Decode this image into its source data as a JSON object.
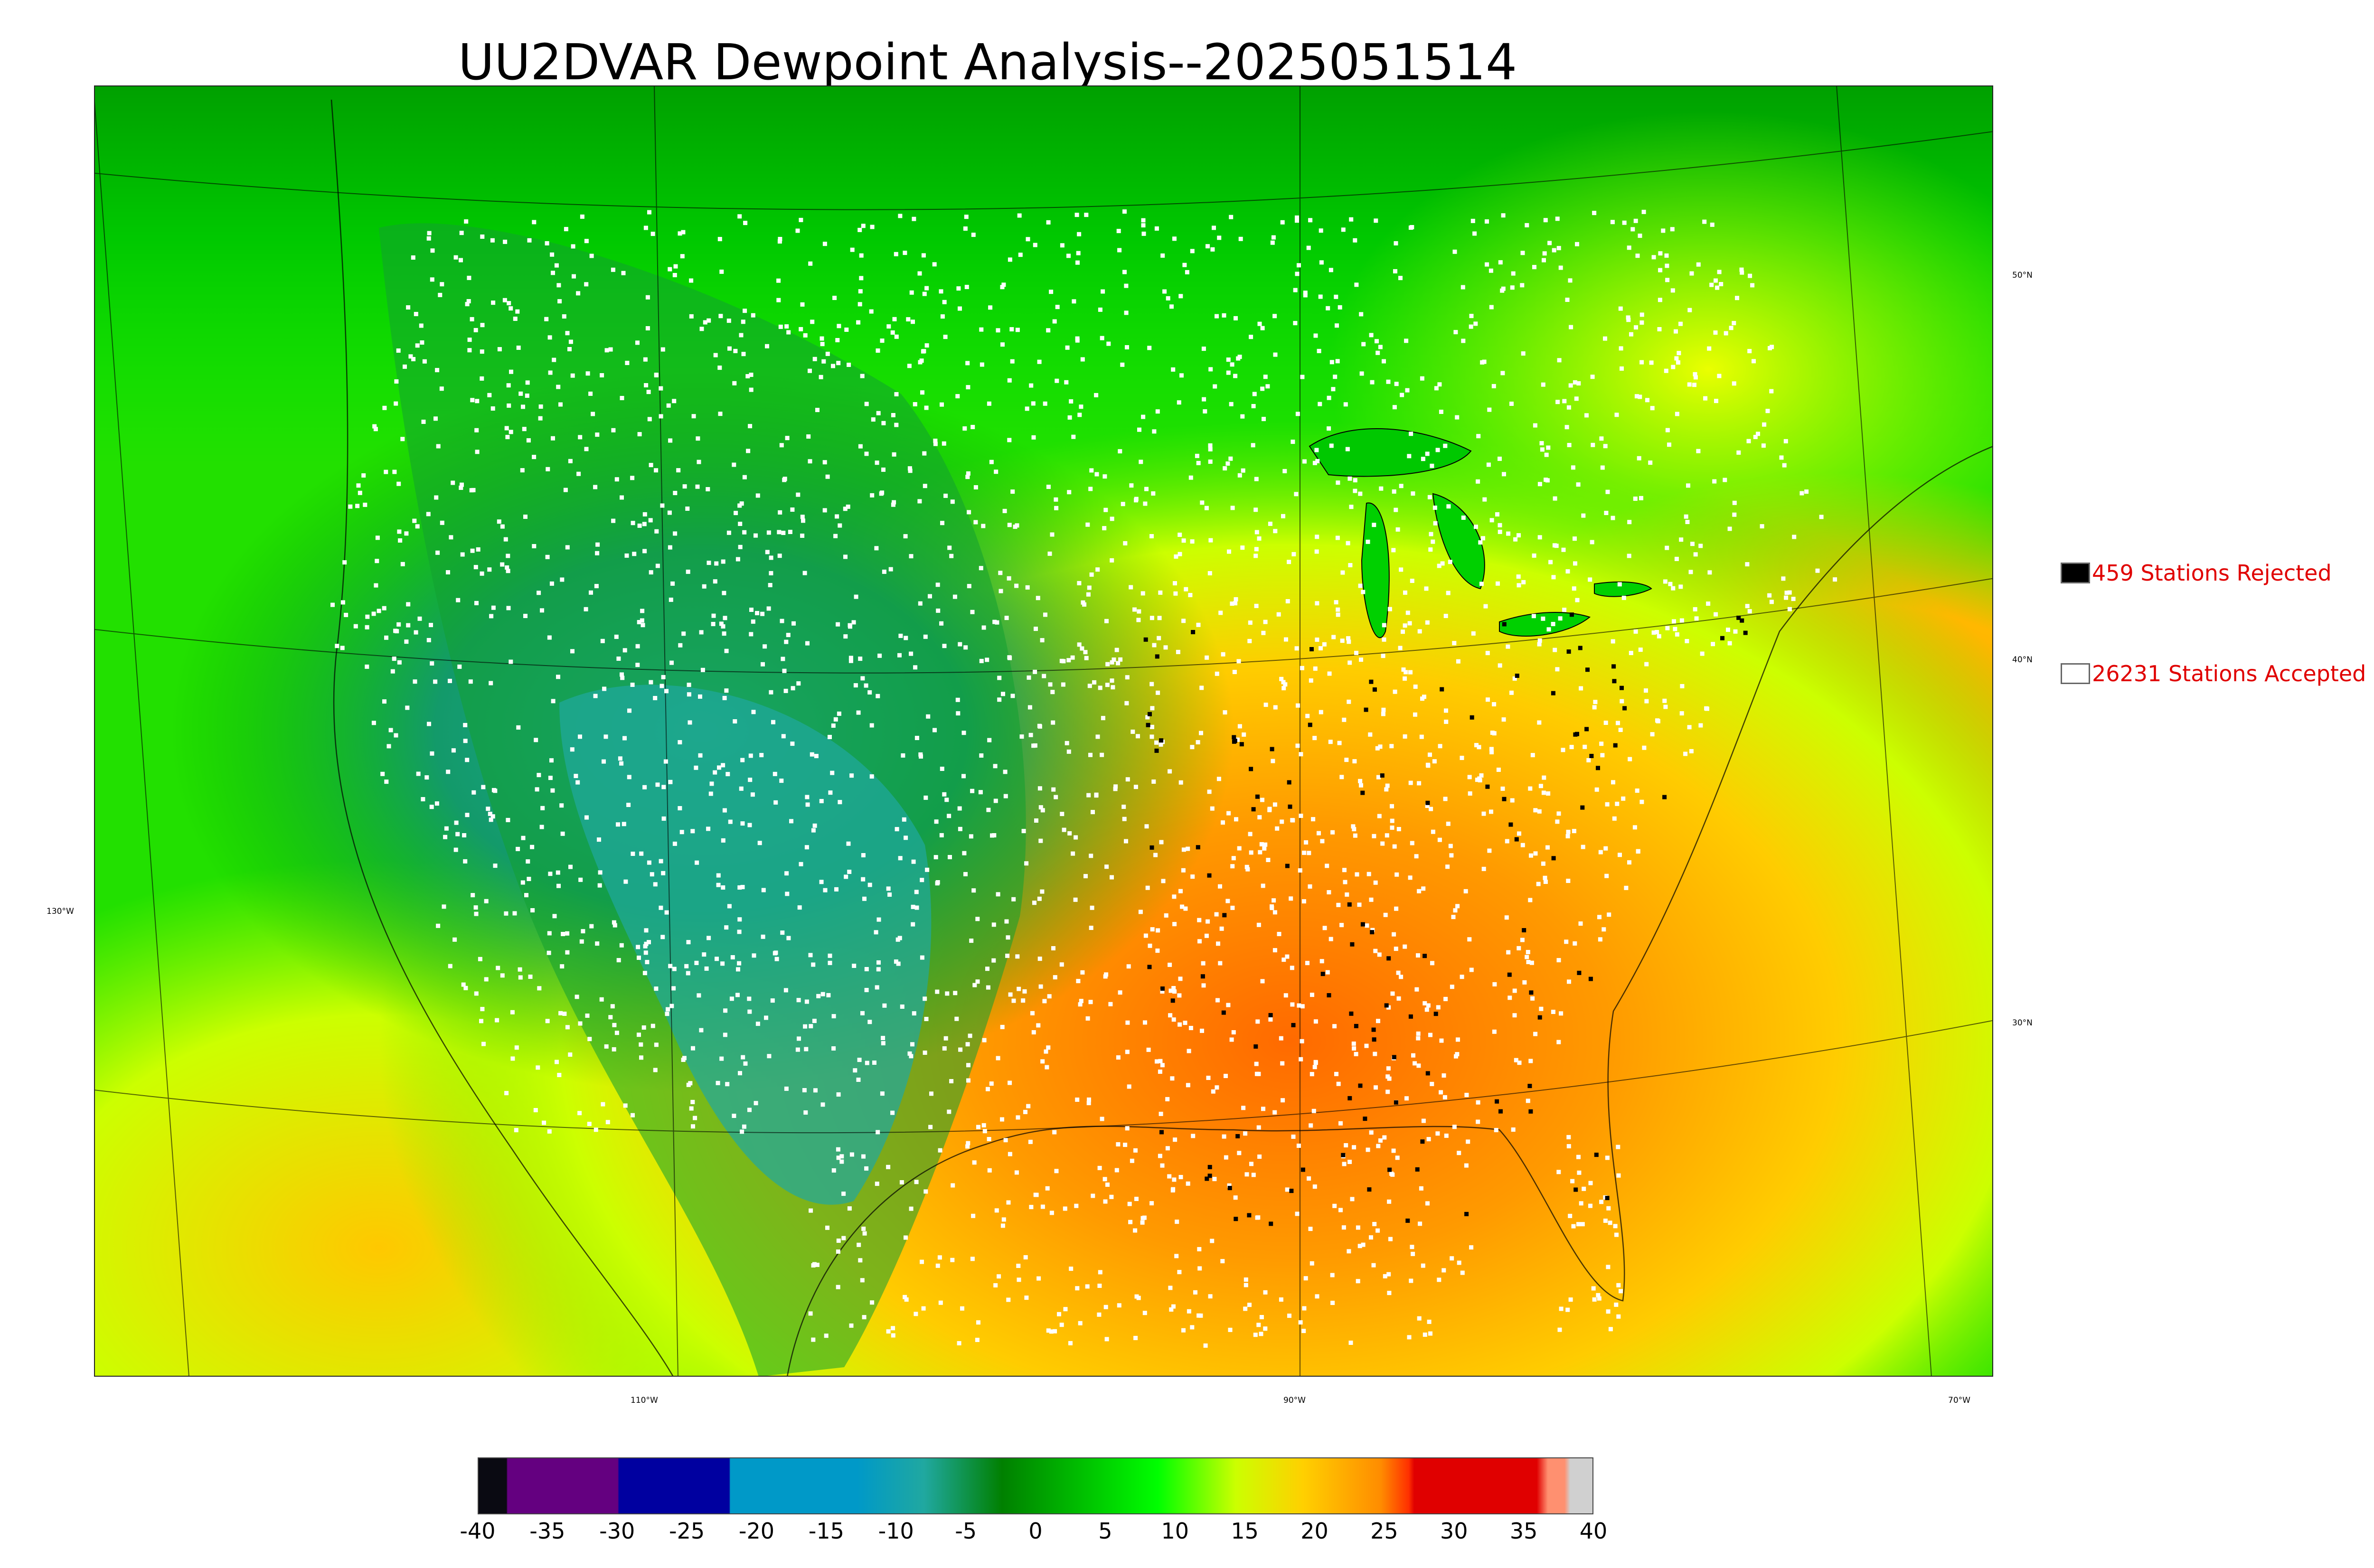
{
  "title": "UU2DVAR Dewpoint Analysis--2025051514",
  "map": {
    "lat_labels": [
      "50°N",
      "40°N",
      "30°N"
    ],
    "lon_labels": [
      "130°W",
      "110°W",
      "90°W",
      "70°W"
    ]
  },
  "legend": {
    "rejected": {
      "count": 459,
      "label": "459 Stations Rejected",
      "color": "#000000"
    },
    "accepted": {
      "count": 26231,
      "label": "26231 Stations Accepted",
      "color": "#ffffff"
    }
  },
  "colorbar": {
    "ticks": [
      "-40",
      "-35",
      "-30",
      "-25",
      "-20",
      "-15",
      "-10",
      "-5",
      "0",
      "5",
      "10",
      "15",
      "20",
      "25",
      "30",
      "35",
      "40"
    ],
    "min": -40,
    "max": 40,
    "colors": {
      "very_cold": "#0a0a12",
      "purple": "#640080",
      "navy": "#0000a0",
      "teal_blue": "#0099c8",
      "teal": "#20a8a0",
      "dark_green": "#008000",
      "green": "#00d000",
      "bright_green": "#00ff00",
      "yellow_green": "#ccff00",
      "yellow": "#ffd000",
      "orange": "#ff8c00",
      "red_orange": "#ff3000",
      "red": "#e00000",
      "salmon": "#ff9070",
      "light_gray": "#d0d0d0"
    }
  }
}
